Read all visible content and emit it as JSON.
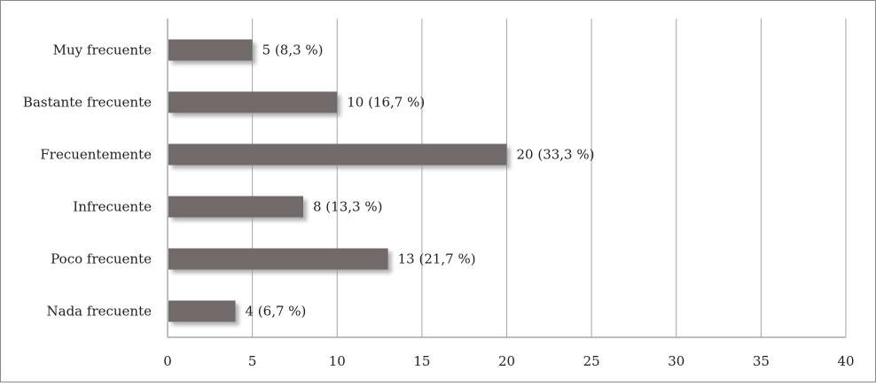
{
  "chart_data": {
    "type": "bar",
    "orientation": "horizontal",
    "categories": [
      "Muy frecuente",
      "Bastante frecuente",
      "Frecuentemente",
      "Infrecuente",
      "Poco frecuente",
      "Nada frecuente"
    ],
    "values": [
      5,
      10,
      20,
      8,
      13,
      4
    ],
    "value_labels": [
      "5 (8,3 %)",
      "10 (16,7 %)",
      "20 (33,3 %)",
      "8 (13,3 %)",
      "13 (21,7 %)",
      "4 (6,7 %)"
    ],
    "xlim": [
      0,
      40
    ],
    "x_ticks": [
      0,
      5,
      10,
      15,
      20,
      25,
      30,
      35,
      40
    ],
    "grid": "vertical",
    "legend": "none",
    "title": "",
    "xlabel": "",
    "ylabel": "",
    "colors": {
      "bar": "#6f6b6b",
      "bar_shadow": "#c4c4c4",
      "grid": "#a6a6a6",
      "border": "#8a8a8a"
    }
  }
}
